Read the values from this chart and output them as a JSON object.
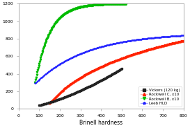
{
  "title": "",
  "xlabel": "Brinell hardness",
  "ylabel": "",
  "xlim": [
    0,
    800
  ],
  "ylim": [
    0,
    1200
  ],
  "xticks": [
    0,
    100,
    200,
    300,
    400,
    500,
    600,
    700,
    800
  ],
  "yticks": [
    0,
    200,
    400,
    600,
    800,
    1000,
    1200
  ],
  "background_color": "#ffffff",
  "legend_labels": [
    "Vickers (120 kg)",
    "Rockwell C, x10",
    "Rockwell B, x10",
    "Leeb HLD"
  ],
  "series": {
    "vickers": {
      "color": "#222222",
      "marker": ".",
      "markersize": 2.0,
      "linecolor": "#bbbbbb",
      "linewidth": 0.4
    },
    "rockwell_c": {
      "color": "#ff2200",
      "marker": ".",
      "markersize": 2.0,
      "linecolor": "#ffbbbb",
      "linewidth": 0.4
    },
    "rockwell_b": {
      "color": "#00bb00",
      "marker": ".",
      "markersize": 2.0,
      "linecolor": "#aaffaa",
      "linewidth": 0.4
    },
    "leeb": {
      "color": "#2222ff",
      "marker": ".",
      "markersize": 2.0,
      "linecolor": "#aaaaff",
      "linewidth": 0.4
    }
  },
  "legend_marker_styles": [
    {
      "color": "#222222",
      "marker": "s",
      "linestyle": "-",
      "linecolor": "#bbbbbb"
    },
    {
      "color": "#ff2200",
      "marker": "^",
      "linestyle": "-",
      "linecolor": "#ffbbbb"
    },
    {
      "color": "#00bb00",
      "marker": "v",
      "linestyle": "-",
      "linecolor": "#aaffaa"
    },
    {
      "color": "#2222ff",
      "marker": "*",
      "linestyle": "-",
      "linecolor": "#aaaaff"
    }
  ]
}
